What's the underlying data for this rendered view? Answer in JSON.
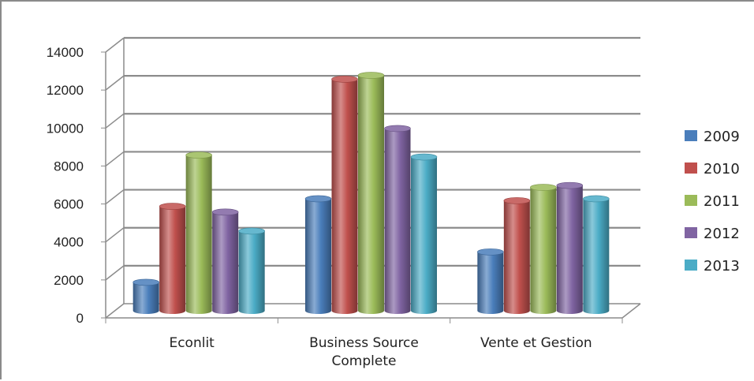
{
  "chart_data": {
    "type": "bar",
    "categories": [
      "Econlit",
      "Business Source Complete",
      "Vente et Gestion"
    ],
    "category_lines": [
      [
        "Econlit"
      ],
      [
        "Business Source",
        "Complete"
      ],
      [
        "Vente et Gestion"
      ]
    ],
    "series": [
      {
        "name": "2009",
        "values": [
          1500,
          5900,
          3100
        ],
        "color": "#4a7ebb"
      },
      {
        "name": "2010",
        "values": [
          5500,
          12200,
          5800
        ],
        "color": "#c0504d"
      },
      {
        "name": "2011",
        "values": [
          8200,
          12400,
          6500
        ],
        "color": "#9bbb59"
      },
      {
        "name": "2012",
        "values": [
          5200,
          9600,
          6600
        ],
        "color": "#8064a2"
      },
      {
        "name": "2013",
        "values": [
          4200,
          8100,
          5900
        ],
        "color": "#4bacc6"
      }
    ],
    "yticks": [
      "0",
      "2000",
      "4000",
      "6000",
      "8000",
      "10000",
      "12000",
      "14000"
    ],
    "ylim": [
      0,
      14000
    ],
    "title": "",
    "xlabel": "",
    "ylabel": "",
    "grid": true,
    "legend": "right"
  }
}
